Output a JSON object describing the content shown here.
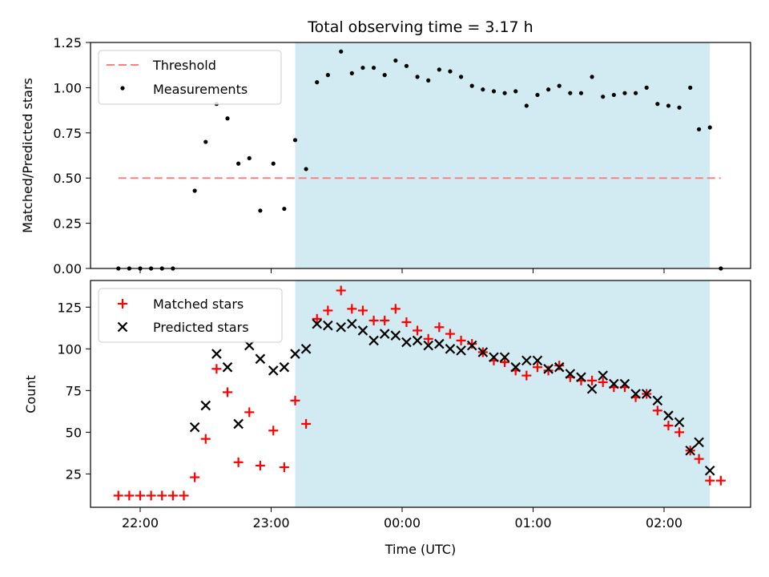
{
  "chart_data": {
    "title": "Total observing time = 3.17 h",
    "xlabel": "Time (UTC)",
    "x_ticks": [
      "22:00",
      "23:00",
      "00:00",
      "01:00",
      "02:00"
    ],
    "shaded_span": {
      "start": "23:11",
      "end": "02:21",
      "color": "#add8e6"
    },
    "top": {
      "type": "scatter",
      "ylabel": "Matched/Predicted stars",
      "ylim": [
        0,
        1.25
      ],
      "y_ticks": [
        "0.00",
        "0.25",
        "0.50",
        "0.75",
        "1.00",
        "1.25"
      ],
      "threshold": {
        "name": "Threshold",
        "value": 0.5,
        "x_start": "21:50",
        "x_end": "02:26",
        "color": "#ff7f7f"
      },
      "series": [
        {
          "name": "Measurements",
          "color": "#000000",
          "points": [
            [
              "21:50",
              0.0
            ],
            [
              "21:55",
              0.0
            ],
            [
              "22:00",
              0.0
            ],
            [
              "22:05",
              0.0
            ],
            [
              "22:10",
              0.0
            ],
            [
              "22:15",
              0.0
            ],
            [
              "22:25",
              0.43
            ],
            [
              "22:30",
              0.7
            ],
            [
              "22:35",
              0.91
            ],
            [
              "22:40",
              0.83
            ],
            [
              "22:45",
              0.58
            ],
            [
              "22:50",
              0.61
            ],
            [
              "22:55",
              0.32
            ],
            [
              "23:01",
              0.58
            ],
            [
              "23:06",
              0.33
            ],
            [
              "23:11",
              0.71
            ],
            [
              "23:16",
              0.55
            ],
            [
              "23:21",
              1.03
            ],
            [
              "23:26",
              1.07
            ],
            [
              "23:32",
              1.2
            ],
            [
              "23:37",
              1.08
            ],
            [
              "23:42",
              1.11
            ],
            [
              "23:47",
              1.11
            ],
            [
              "23:52",
              1.07
            ],
            [
              "23:57",
              1.15
            ],
            [
              "00:02",
              1.12
            ],
            [
              "00:07",
              1.06
            ],
            [
              "00:12",
              1.04
            ],
            [
              "00:17",
              1.1
            ],
            [
              "00:22",
              1.09
            ],
            [
              "00:27",
              1.06
            ],
            [
              "00:32",
              1.01
            ],
            [
              "00:37",
              0.99
            ],
            [
              "00:42",
              0.98
            ],
            [
              "00:47",
              0.97
            ],
            [
              "00:52",
              0.98
            ],
            [
              "00:57",
              0.9
            ],
            [
              "01:02",
              0.96
            ],
            [
              "01:07",
              0.99
            ],
            [
              "01:12",
              1.01
            ],
            [
              "01:17",
              0.97
            ],
            [
              "01:22",
              0.97
            ],
            [
              "01:27",
              1.06
            ],
            [
              "01:32",
              0.95
            ],
            [
              "01:37",
              0.96
            ],
            [
              "01:42",
              0.97
            ],
            [
              "01:47",
              0.97
            ],
            [
              "01:52",
              1.0
            ],
            [
              "01:57",
              0.91
            ],
            [
              "02:02",
              0.9
            ],
            [
              "02:07",
              0.89
            ],
            [
              "02:12",
              1.0
            ],
            [
              "02:16",
              0.77
            ],
            [
              "02:21",
              0.78
            ],
            [
              "02:26",
              0.0
            ]
          ]
        }
      ]
    },
    "bottom": {
      "type": "scatter",
      "ylabel": "Count",
      "ylim": [
        5,
        141
      ],
      "y_ticks": [
        "25",
        "50",
        "75",
        "100",
        "125"
      ],
      "series": [
        {
          "name": "Matched stars",
          "color": "#ff0000",
          "marker": "plus",
          "points": [
            [
              "21:50",
              12
            ],
            [
              "21:55",
              12
            ],
            [
              "22:00",
              12
            ],
            [
              "22:05",
              12
            ],
            [
              "22:10",
              12
            ],
            [
              "22:15",
              12
            ],
            [
              "22:20",
              12
            ],
            [
              "22:25",
              23
            ],
            [
              "22:30",
              46
            ],
            [
              "22:35",
              88
            ],
            [
              "22:40",
              74
            ],
            [
              "22:45",
              32
            ],
            [
              "22:50",
              62
            ],
            [
              "22:55",
              30
            ],
            [
              "23:01",
              51
            ],
            [
              "23:06",
              29
            ],
            [
              "23:11",
              69
            ],
            [
              "23:16",
              55
            ],
            [
              "23:21",
              118
            ],
            [
              "23:26",
              123
            ],
            [
              "23:32",
              135
            ],
            [
              "23:37",
              124
            ],
            [
              "23:42",
              123
            ],
            [
              "23:47",
              117
            ],
            [
              "23:52",
              117
            ],
            [
              "23:57",
              124
            ],
            [
              "00:02",
              116
            ],
            [
              "00:07",
              111
            ],
            [
              "00:12",
              106
            ],
            [
              "00:17",
              113
            ],
            [
              "00:22",
              109
            ],
            [
              "00:27",
              105
            ],
            [
              "00:32",
              103
            ],
            [
              "00:37",
              98
            ],
            [
              "00:42",
              93
            ],
            [
              "00:47",
              92
            ],
            [
              "00:52",
              87
            ],
            [
              "00:57",
              84
            ],
            [
              "01:02",
              89
            ],
            [
              "01:07",
              87
            ],
            [
              "01:12",
              90
            ],
            [
              "01:17",
              83
            ],
            [
              "01:22",
              81
            ],
            [
              "01:27",
              81
            ],
            [
              "01:32",
              80
            ],
            [
              "01:37",
              77
            ],
            [
              "01:42",
              77
            ],
            [
              "01:47",
              71
            ],
            [
              "01:52",
              73
            ],
            [
              "01:57",
              63
            ],
            [
              "02:02",
              54
            ],
            [
              "02:07",
              50
            ],
            [
              "02:12",
              39
            ],
            [
              "02:16",
              34
            ],
            [
              "02:21",
              21
            ],
            [
              "02:26",
              21
            ]
          ]
        },
        {
          "name": "Predicted stars",
          "color": "#000000",
          "marker": "x",
          "points": [
            [
              "22:25",
              53
            ],
            [
              "22:30",
              66
            ],
            [
              "22:35",
              97
            ],
            [
              "22:40",
              89
            ],
            [
              "22:45",
              55
            ],
            [
              "22:50",
              102
            ],
            [
              "22:55",
              94
            ],
            [
              "23:01",
              87
            ],
            [
              "23:06",
              89
            ],
            [
              "23:11",
              97
            ],
            [
              "23:16",
              100
            ],
            [
              "23:21",
              115
            ],
            [
              "23:26",
              114
            ],
            [
              "23:32",
              113
            ],
            [
              "23:37",
              115
            ],
            [
              "23:42",
              111
            ],
            [
              "23:47",
              105
            ],
            [
              "23:52",
              109
            ],
            [
              "23:57",
              108
            ],
            [
              "00:02",
              104
            ],
            [
              "00:07",
              105
            ],
            [
              "00:12",
              102
            ],
            [
              "00:17",
              103
            ],
            [
              "00:22",
              100
            ],
            [
              "00:27",
              99
            ],
            [
              "00:32",
              102
            ],
            [
              "00:37",
              98
            ],
            [
              "00:42",
              95
            ],
            [
              "00:47",
              95
            ],
            [
              "00:52",
              89
            ],
            [
              "00:57",
              93
            ],
            [
              "01:02",
              93
            ],
            [
              "01:07",
              88
            ],
            [
              "01:12",
              89
            ],
            [
              "01:17",
              85
            ],
            [
              "01:22",
              83
            ],
            [
              "01:27",
              76
            ],
            [
              "01:32",
              84
            ],
            [
              "01:37",
              79
            ],
            [
              "01:42",
              79
            ],
            [
              "01:47",
              73
            ],
            [
              "01:52",
              73
            ],
            [
              "01:57",
              69
            ],
            [
              "02:02",
              60
            ],
            [
              "02:07",
              56
            ],
            [
              "02:12",
              39
            ],
            [
              "02:16",
              44
            ],
            [
              "02:21",
              27
            ]
          ]
        }
      ]
    }
  }
}
